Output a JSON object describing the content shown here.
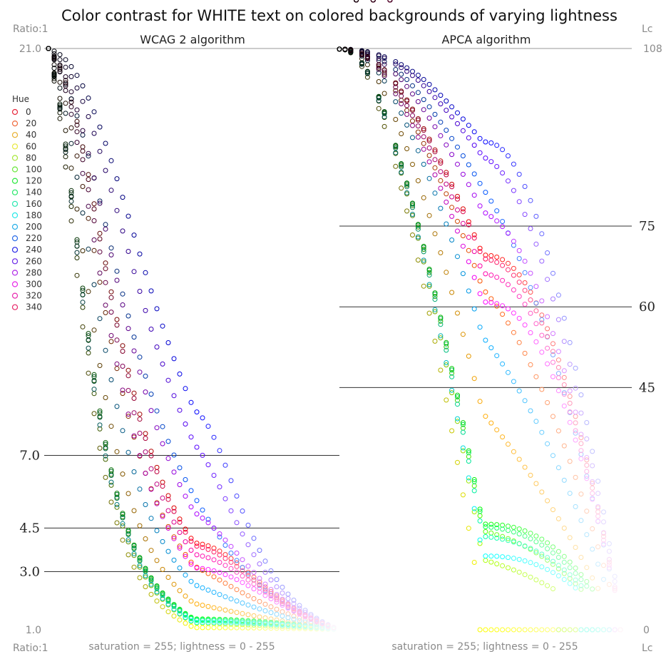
{
  "chart_data": {
    "type": "scatter",
    "title": "Color contrast for WHITE text on colored backgrounds of varying lightness",
    "panels": [
      {
        "id": "wcag",
        "subtitle": "WCAG 2 algorithm",
        "top_axis_label": "Ratio:1",
        "bottom_axis_label": "Ratio:1",
        "x_caption": "saturation = 255; lightness = 0 - 255",
        "ylim": [
          1.0,
          21.0
        ],
        "xlim": [
          0,
          255
        ],
        "threshold_lines": [
          7.0,
          4.5,
          3.0
        ],
        "tick_labels": [
          {
            "value": 21.0,
            "label": "21.0"
          },
          {
            "value": 7.0,
            "label": "7.0"
          },
          {
            "value": 4.5,
            "label": "4.5"
          },
          {
            "value": 3.0,
            "label": "3.0"
          },
          {
            "value": 1.0,
            "label": "1.0"
          }
        ]
      },
      {
        "id": "apca",
        "subtitle": "APCA algorithm",
        "top_axis_label": "Lc",
        "bottom_axis_label": "Lc",
        "x_caption": "saturation = 255; lightness = 0 - 255",
        "ylim": [
          0,
          108
        ],
        "xlim": [
          0,
          255
        ],
        "threshold_lines": [
          75,
          60,
          45
        ],
        "tick_labels": [
          {
            "value": 108,
            "label": "108"
          },
          {
            "value": 75,
            "label": "75"
          },
          {
            "value": 60,
            "label": "60"
          },
          {
            "value": 45,
            "label": "45"
          },
          {
            "value": 0,
            "label": "0"
          }
        ]
      }
    ],
    "legend": {
      "title": "Hue",
      "placement": "left",
      "hues": [
        0,
        20,
        40,
        60,
        80,
        100,
        120,
        140,
        160,
        180,
        200,
        220,
        240,
        260,
        280,
        300,
        320,
        340
      ],
      "colors": [
        "#e8283c",
        "#f06a3c",
        "#e8b030",
        "#e8e83c",
        "#a8e83c",
        "#6ae83c",
        "#28e83c",
        "#28e86a",
        "#28e8b0",
        "#28e8e8",
        "#28b0e8",
        "#286ae8",
        "#2828e8",
        "#6a28e8",
        "#b028e8",
        "#e828e8",
        "#e828b0",
        "#e8286a"
      ]
    },
    "series_model": {
      "description_note": "",
      "lightness_step": 5
    }
  }
}
